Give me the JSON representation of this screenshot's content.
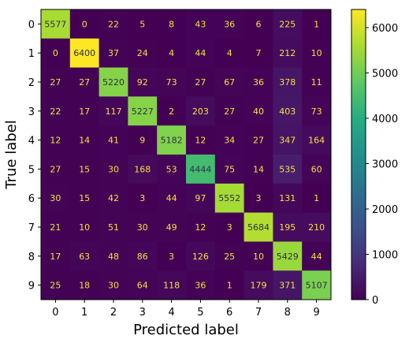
{
  "chart_data": {
    "type": "heatmap",
    "xlabel": "Predicted label",
    "ylabel": "True label",
    "x_categories": [
      "0",
      "1",
      "2",
      "3",
      "4",
      "5",
      "6",
      "7",
      "8",
      "9"
    ],
    "y_categories": [
      "0",
      "1",
      "2",
      "3",
      "4",
      "5",
      "6",
      "7",
      "8",
      "9"
    ],
    "matrix": [
      [
        5577,
        0,
        22,
        5,
        8,
        43,
        36,
        6,
        225,
        1
      ],
      [
        0,
        6400,
        37,
        24,
        4,
        44,
        4,
        7,
        212,
        10
      ],
      [
        27,
        27,
        5220,
        92,
        73,
        27,
        67,
        36,
        378,
        11
      ],
      [
        22,
        17,
        117,
        5227,
        2,
        203,
        27,
        40,
        403,
        73
      ],
      [
        12,
        14,
        41,
        9,
        5182,
        12,
        34,
        27,
        347,
        164
      ],
      [
        27,
        15,
        30,
        168,
        53,
        4444,
        75,
        14,
        535,
        60
      ],
      [
        30,
        15,
        42,
        3,
        44,
        97,
        5552,
        3,
        131,
        1
      ],
      [
        21,
        10,
        51,
        30,
        49,
        12,
        3,
        5684,
        195,
        210
      ],
      [
        17,
        63,
        48,
        86,
        3,
        126,
        25,
        10,
        5429,
        44
      ],
      [
        25,
        18,
        30,
        64,
        118,
        36,
        1,
        179,
        371,
        5107
      ]
    ],
    "colormap": "viridis",
    "value_range": [
      0,
      6400
    ],
    "colorbar_ticks": [
      0,
      1000,
      2000,
      3000,
      4000,
      5000,
      6000
    ],
    "grid": false
  }
}
